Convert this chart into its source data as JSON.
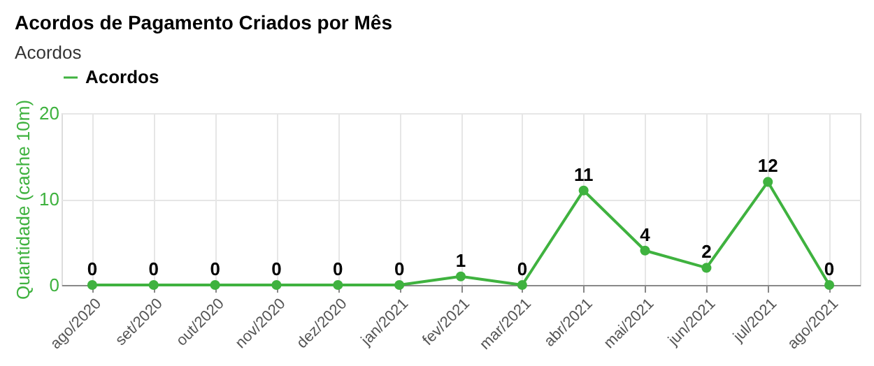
{
  "chart_data": {
    "type": "line",
    "title": "Acordos de Pagamento Criados por Mês",
    "subtitle": "Acordos",
    "ylabel": "Quantidade (cache 10m)",
    "categories": [
      "ago/2020",
      "set/2020",
      "out/2020",
      "nov/2020",
      "dez/2020",
      "jan/2021",
      "fev/2021",
      "mar/2021",
      "abr/2021",
      "mai/2021",
      "jun/2021",
      "jul/2021",
      "ago/2021"
    ],
    "series": [
      {
        "name": "Acordos",
        "color": "#3fb23f",
        "values": [
          0,
          0,
          0,
          0,
          0,
          0,
          1,
          0,
          11,
          4,
          2,
          12,
          0
        ]
      }
    ],
    "ylim": [
      0,
      20
    ],
    "yticks": [
      0,
      10,
      20
    ],
    "grid": true,
    "legend": "top",
    "data_labels": true,
    "marker": "circle",
    "line_style": "solid"
  }
}
